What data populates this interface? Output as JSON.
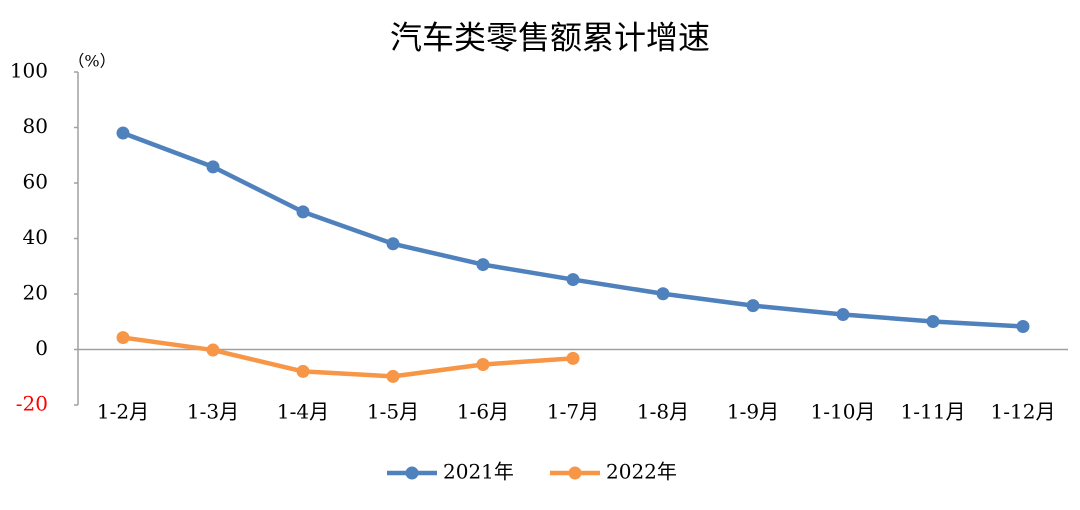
{
  "chart_data": {
    "type": "line",
    "title": "汽车类零售额累计增速",
    "ylabel": "（%）",
    "categories": [
      "1-2月",
      "1-3月",
      "1-4月",
      "1-5月",
      "1-6月",
      "1-7月",
      "1-8月",
      "1-9月",
      "1-10月",
      "1-11月",
      "1-12月"
    ],
    "series": [
      {
        "name": "2021年",
        "color": "#4f81bd",
        "values": [
          78,
          65.8,
          49.6,
          38.1,
          30.6,
          25.2,
          20.1,
          15.8,
          12.6,
          10.1,
          8.3
        ]
      },
      {
        "name": "2022年",
        "color": "#f79646",
        "values": [
          4.3,
          -0.2,
          -7.9,
          -9.7,
          -5.4,
          -3.2,
          null,
          null,
          null,
          null,
          null
        ]
      }
    ],
    "ylim": [
      -20,
      100
    ],
    "yticks": [
      -20,
      0,
      20,
      40,
      60,
      80,
      100
    ],
    "negative_tick_color": "#ff0000",
    "grid": false,
    "legend": "bottom"
  }
}
